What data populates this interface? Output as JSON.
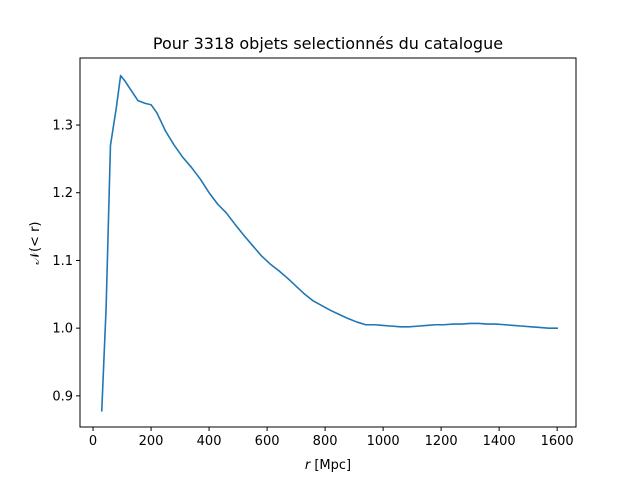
{
  "chart_data": {
    "type": "line",
    "title": "Pour 3318 objets selectionnés du catalogue",
    "xlabel_var": "r",
    "xlabel_unit": "[Mpc]",
    "ylabel": "𝒩(< r)",
    "xlim": [
      -45,
      1665
    ],
    "ylim": [
      0.854,
      1.399
    ],
    "xticks": [
      0,
      200,
      400,
      600,
      800,
      1000,
      1200,
      1400,
      1600
    ],
    "xtick_labels": [
      "0",
      "200",
      "400",
      "600",
      "800",
      "1000",
      "1200",
      "1400",
      "1600"
    ],
    "yticks": [
      0.9,
      1.0,
      1.1,
      1.2,
      1.3
    ],
    "ytick_labels": [
      "0.9",
      "1.0",
      "1.1",
      "1.2",
      "1.3"
    ],
    "grid": false,
    "series": [
      {
        "color": "#1f77b4",
        "x": [
          30,
          45,
          60,
          80,
          95,
          110,
          130,
          155,
          180,
          200,
          220,
          250,
          280,
          310,
          340,
          370,
          400,
          430,
          460,
          490,
          520,
          550,
          580,
          610,
          640,
          670,
          700,
          730,
          760,
          790,
          820,
          850,
          880,
          910,
          940,
          970,
          1000,
          1030,
          1060,
          1090,
          1120,
          1150,
          1180,
          1210,
          1240,
          1270,
          1300,
          1330,
          1360,
          1390,
          1420,
          1450,
          1480,
          1510,
          1540,
          1570,
          1600
        ],
        "y": [
          0.878,
          1.03,
          1.27,
          1.325,
          1.373,
          1.365,
          1.352,
          1.336,
          1.332,
          1.33,
          1.318,
          1.291,
          1.27,
          1.252,
          1.237,
          1.22,
          1.2,
          1.183,
          1.17,
          1.153,
          1.137,
          1.122,
          1.107,
          1.095,
          1.085,
          1.074,
          1.062,
          1.05,
          1.04,
          1.033,
          1.026,
          1.02,
          1.014,
          1.009,
          1.005,
          1.005,
          1.004,
          1.003,
          1.002,
          1.002,
          1.003,
          1.004,
          1.005,
          1.005,
          1.006,
          1.006,
          1.007,
          1.007,
          1.006,
          1.006,
          1.005,
          1.004,
          1.003,
          1.002,
          1.001,
          1.0,
          1.0
        ]
      }
    ]
  }
}
